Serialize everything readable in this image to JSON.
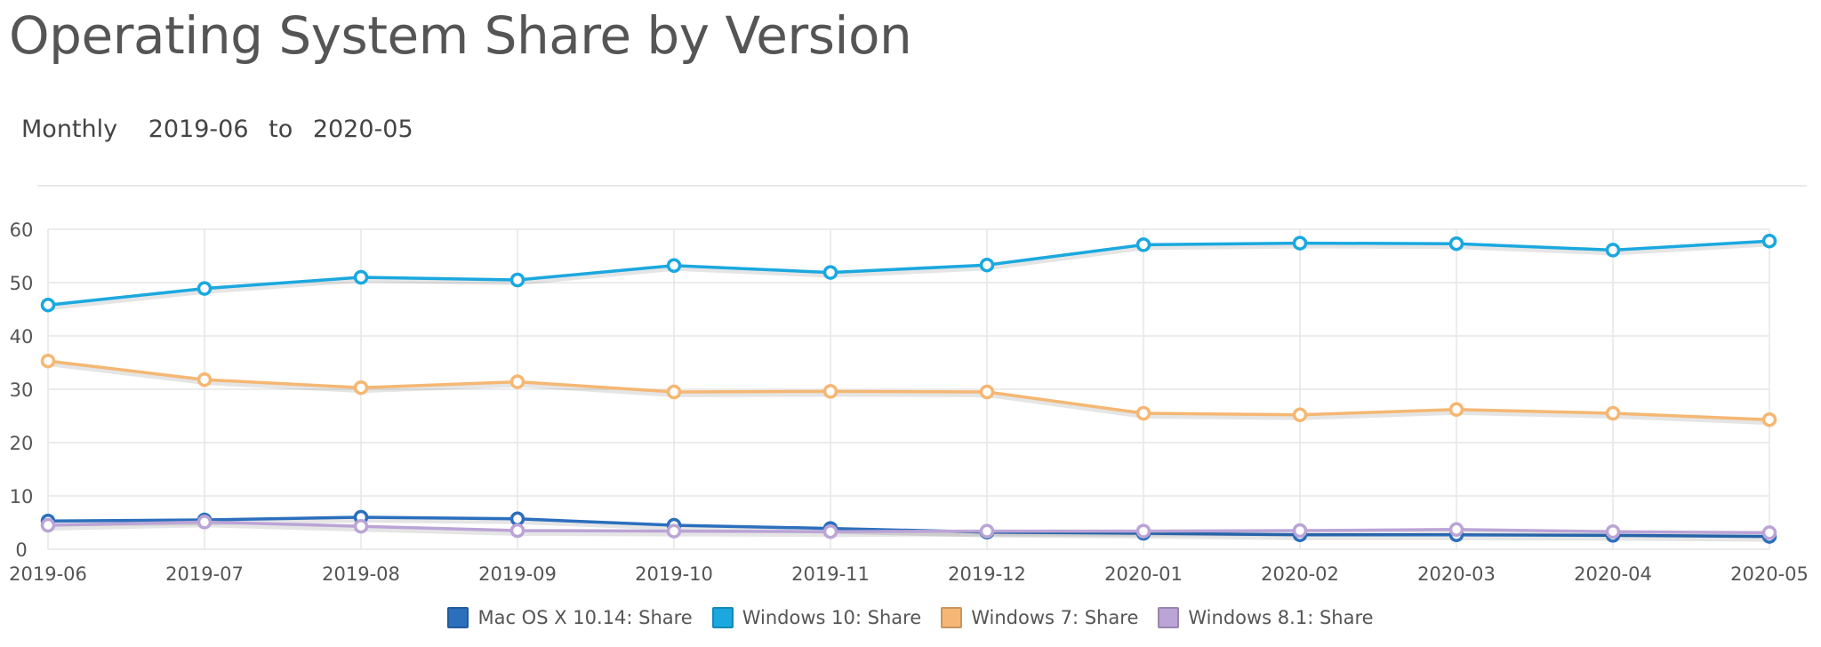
{
  "header": {
    "title": "Operating System Share by Version",
    "interval": "Monthly",
    "range_from": "2019-06",
    "range_sep": "to",
    "range_to": "2020-05"
  },
  "colors": {
    "grid": "#e6e6e6",
    "axis_text": "#555555"
  },
  "chart_data": {
    "type": "line",
    "title": "Operating System Share by Version",
    "xlabel": "",
    "ylabel": "",
    "ylim": [
      0,
      60
    ],
    "yticks": [
      0,
      10,
      20,
      30,
      40,
      50,
      60
    ],
    "grid": true,
    "legend_position": "bottom-center",
    "categories": [
      "2019-06",
      "2019-07",
      "2019-08",
      "2019-09",
      "2019-10",
      "2019-11",
      "2019-12",
      "2020-01",
      "2020-02",
      "2020-03",
      "2020-04",
      "2020-05"
    ],
    "series": [
      {
        "name": "Mac OS X 10.14: Share",
        "color": "#2b6fbd",
        "values": [
          5.3,
          5.5,
          6.0,
          5.7,
          4.5,
          3.9,
          3.2,
          3.0,
          2.7,
          2.7,
          2.6,
          2.4
        ]
      },
      {
        "name": "Windows 10: Share",
        "color": "#1aa8df",
        "values": [
          45.8,
          48.9,
          51.0,
          50.5,
          53.2,
          51.9,
          53.3,
          57.1,
          57.4,
          57.3,
          56.1,
          57.8
        ]
      },
      {
        "name": "Windows 7: Share",
        "color": "#f5b773",
        "values": [
          35.3,
          31.8,
          30.3,
          31.4,
          29.5,
          29.6,
          29.5,
          25.5,
          25.2,
          26.2,
          25.5,
          24.3
        ]
      },
      {
        "name": "Windows 8.1: Share",
        "color": "#bba4d6",
        "values": [
          4.5,
          5.1,
          4.3,
          3.5,
          3.4,
          3.3,
          3.4,
          3.4,
          3.5,
          3.7,
          3.3,
          3.1
        ]
      }
    ]
  }
}
